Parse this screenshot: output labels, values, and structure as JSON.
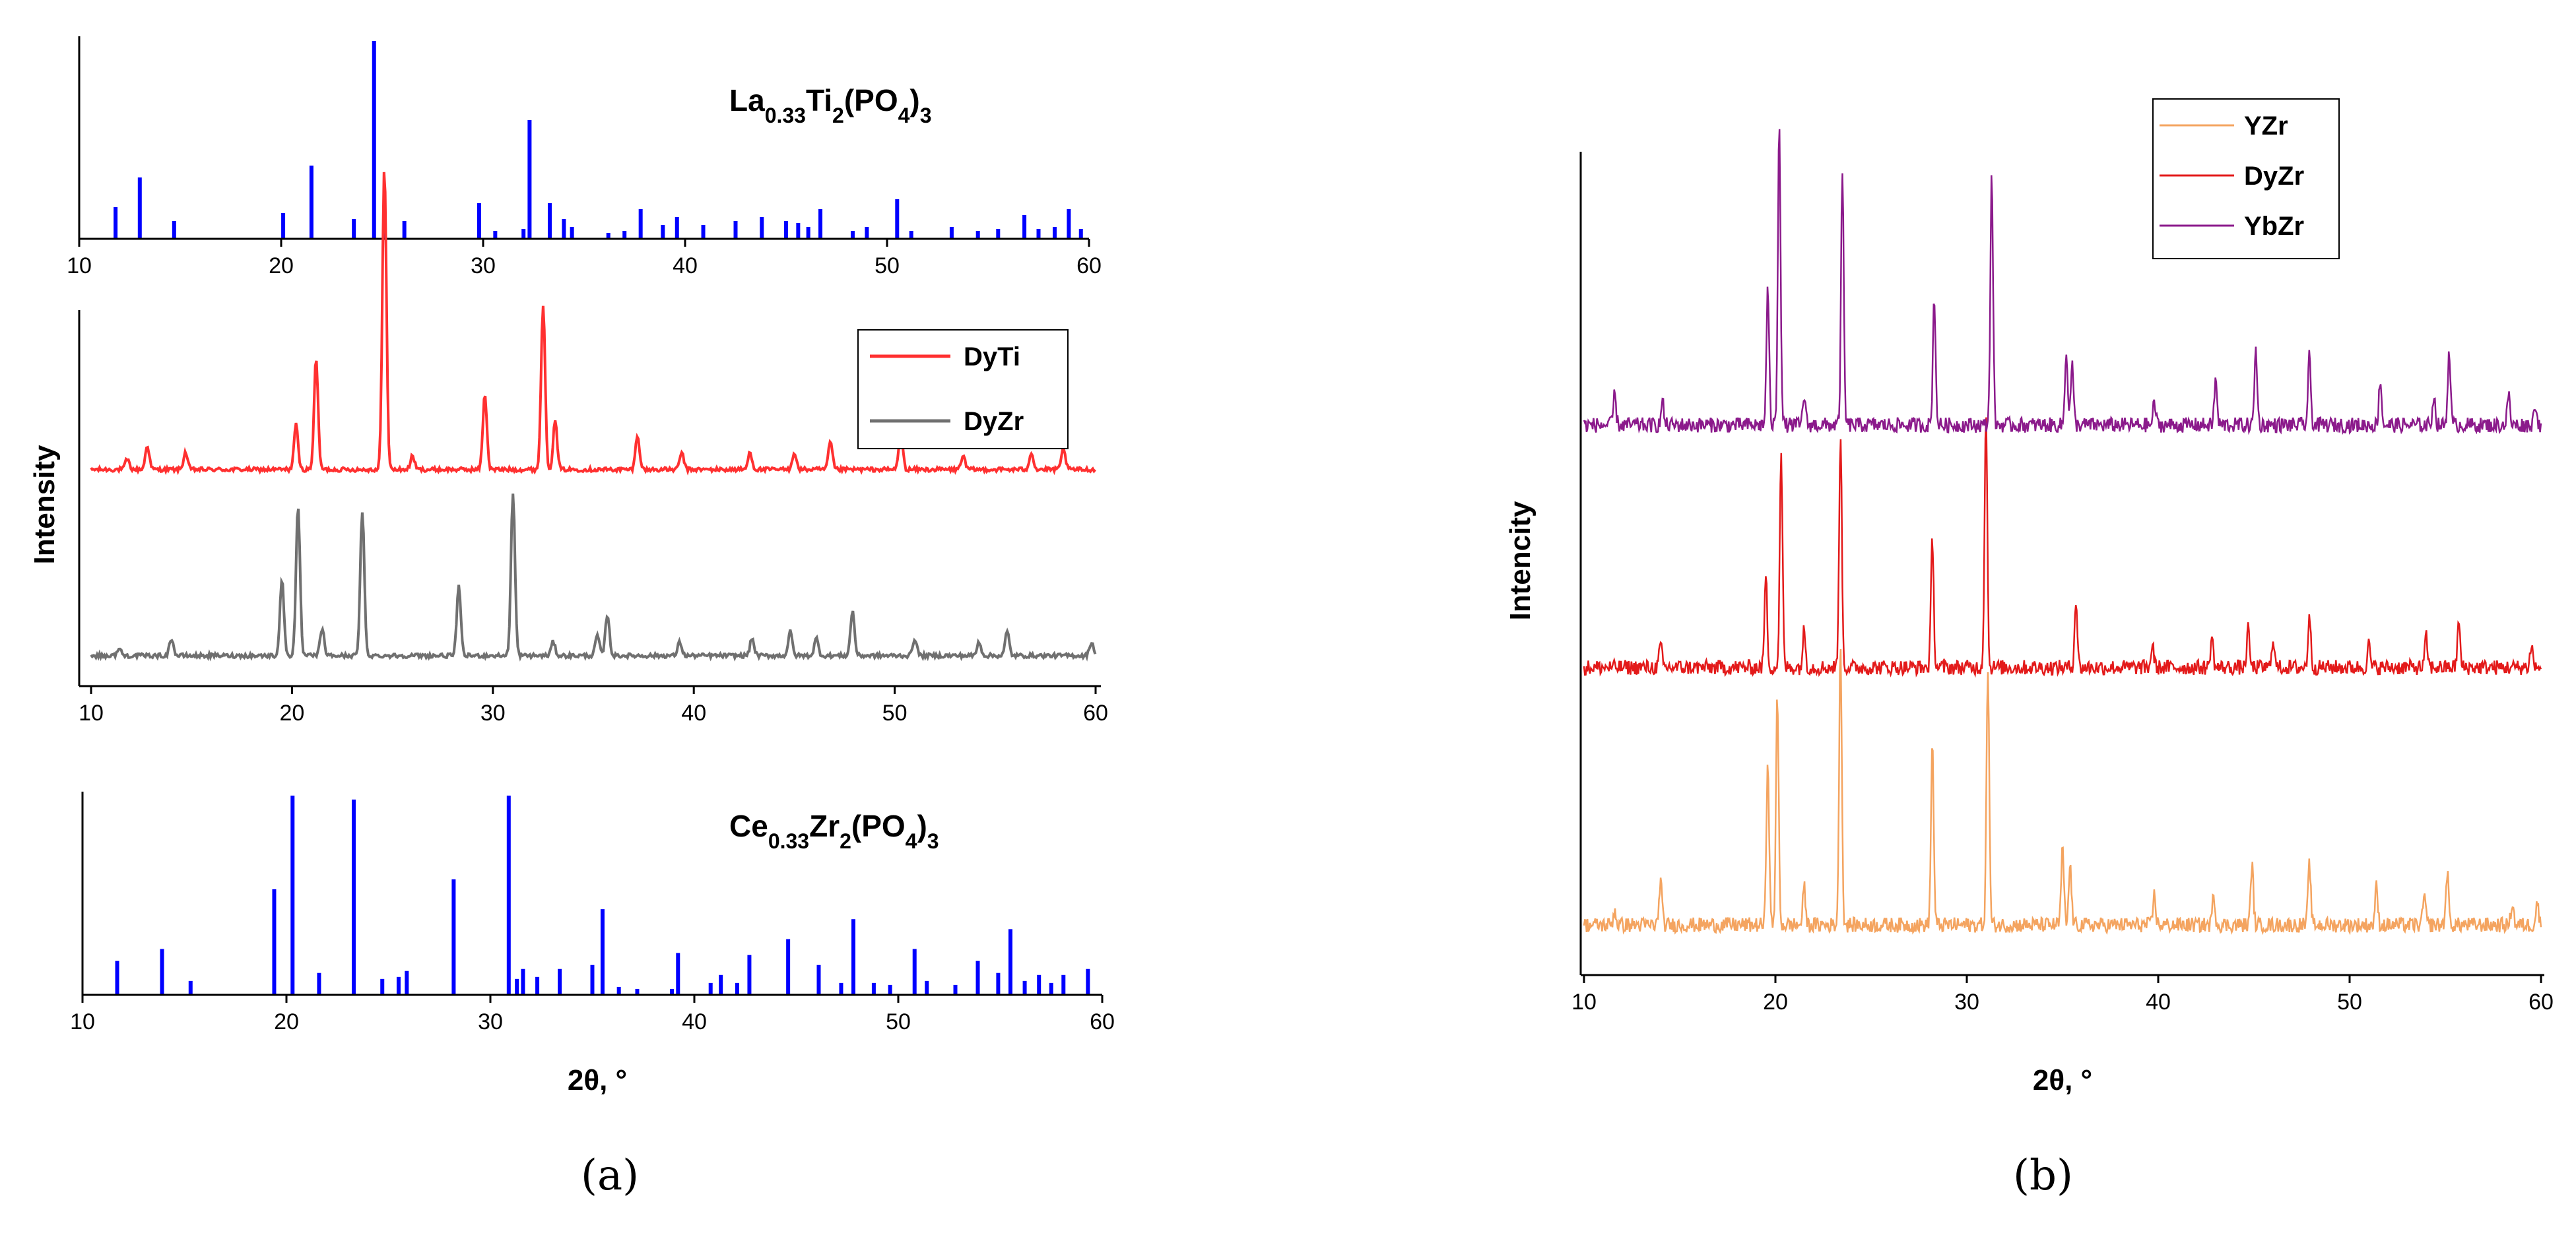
{
  "chart_data": [
    {
      "panel": "a",
      "caption": "(a)",
      "type": "line",
      "xlabel": "2θ, °",
      "ylabel": "Intensity",
      "xlim": [
        10,
        60
      ],
      "xticks": [
        10,
        20,
        30,
        40,
        50,
        60
      ],
      "subplots": [
        {
          "role": "reference-top",
          "type": "bar",
          "compound_parts": [
            {
              "text": "La",
              "sub": false
            },
            {
              "text": "0.33",
              "sub": true
            },
            {
              "text": "Ti",
              "sub": false
            },
            {
              "text": "2",
              "sub": true
            },
            {
              "text": "(PO",
              "sub": false
            },
            {
              "text": "4",
              "sub": true
            },
            {
              "text": ")",
              "sub": false
            },
            {
              "text": "3",
              "sub": true
            }
          ],
          "color": "#0000ff",
          "x": [
            11.8,
            13.0,
            14.7,
            20.1,
            21.5,
            23.6,
            24.6,
            25.1,
            26.1,
            29.8,
            30.6,
            32.0,
            32.3,
            33.3,
            34.0,
            34.4,
            36.2,
            37.0,
            37.8,
            38.9,
            39.6,
            40.9,
            42.5,
            43.8,
            45.0,
            45.6,
            46.1,
            46.7,
            48.3,
            49.0,
            50.5,
            51.2,
            53.2,
            54.5,
            55.5,
            56.8,
            57.5,
            58.3,
            59.0,
            59.6
          ],
          "values": [
            16,
            31,
            9,
            13,
            37,
            10,
            100,
            7,
            9,
            18,
            4,
            5,
            60,
            18,
            10,
            6,
            3,
            4,
            15,
            7,
            11,
            7,
            9,
            11,
            9,
            8,
            6,
            15,
            4,
            6,
            20,
            4,
            6,
            4,
            5,
            12,
            5,
            6,
            15,
            5
          ]
        },
        {
          "role": "measured",
          "type": "line",
          "legend": "top-right",
          "series": [
            {
              "name": "DyTi",
              "color": "#ff3030",
              "offset": 0.56,
              "peaks": [
                [
                  11.8,
                  0.03
                ],
                [
                  12.8,
                  0.07
                ],
                [
                  14.7,
                  0.05
                ],
                [
                  20.2,
                  0.13
                ],
                [
                  21.2,
                  0.32
                ],
                [
                  24.6,
                  0.88
                ],
                [
                  26.0,
                  0.04
                ],
                [
                  29.6,
                  0.22
                ],
                [
                  32.5,
                  0.48
                ],
                [
                  33.1,
                  0.14
                ],
                [
                  37.2,
                  0.1
                ],
                [
                  39.4,
                  0.05
                ],
                [
                  42.8,
                  0.05
                ],
                [
                  45.0,
                  0.05
                ],
                [
                  46.8,
                  0.08
                ],
                [
                  50.3,
                  0.11
                ],
                [
                  53.4,
                  0.04
                ],
                [
                  56.8,
                  0.05
                ],
                [
                  58.4,
                  0.06
                ]
              ]
            },
            {
              "name": "DyZr",
              "color": "#707070",
              "offset": 0.02,
              "peaks": [
                [
                  11.4,
                  0.02
                ],
                [
                  14.0,
                  0.05
                ],
                [
                  19.5,
                  0.22
                ],
                [
                  20.3,
                  0.43
                ],
                [
                  21.5,
                  0.08
                ],
                [
                  23.5,
                  0.42
                ],
                [
                  28.3,
                  0.2
                ],
                [
                  31.0,
                  0.47
                ],
                [
                  33.0,
                  0.04
                ],
                [
                  35.2,
                  0.06
                ],
                [
                  35.7,
                  0.12
                ],
                [
                  39.3,
                  0.04
                ],
                [
                  42.9,
                  0.05
                ],
                [
                  44.8,
                  0.07
                ],
                [
                  46.1,
                  0.05
                ],
                [
                  47.9,
                  0.13
                ],
                [
                  51.0,
                  0.05
                ],
                [
                  54.2,
                  0.04
                ],
                [
                  55.6,
                  0.07
                ],
                [
                  59.8,
                  0.04
                ]
              ]
            }
          ]
        },
        {
          "role": "reference-bottom",
          "type": "bar",
          "compound_parts": [
            {
              "text": "Ce",
              "sub": false
            },
            {
              "text": "0.33",
              "sub": true
            },
            {
              "text": "Zr",
              "sub": false
            },
            {
              "text": "2",
              "sub": true
            },
            {
              "text": "(PO",
              "sub": false
            },
            {
              "text": "4",
              "sub": true
            },
            {
              "text": ")",
              "sub": false
            },
            {
              "text": "3",
              "sub": true
            }
          ],
          "color": "#0000ff",
          "x": [
            11.7,
            13.9,
            15.3,
            19.4,
            20.3,
            21.6,
            23.3,
            24.7,
            25.5,
            25.9,
            28.2,
            30.9,
            31.3,
            31.6,
            32.3,
            33.4,
            35.0,
            35.5,
            36.3,
            37.2,
            38.9,
            39.2,
            40.8,
            41.3,
            42.1,
            42.7,
            44.6,
            46.1,
            47.2,
            47.8,
            48.8,
            49.6,
            50.8,
            51.4,
            52.8,
            53.9,
            54.9,
            55.5,
            56.2,
            56.9,
            57.5,
            58.1,
            59.3
          ],
          "values": [
            17,
            23,
            7,
            53,
            100,
            11,
            98,
            8,
            9,
            12,
            58,
            100,
            8,
            13,
            9,
            13,
            15,
            43,
            4,
            3,
            3,
            21,
            6,
            10,
            6,
            20,
            28,
            15,
            6,
            38,
            6,
            5,
            23,
            7,
            5,
            17,
            11,
            33,
            7,
            10,
            6,
            10,
            13
          ]
        }
      ]
    },
    {
      "panel": "b",
      "caption": "(b)",
      "type": "line",
      "xlabel": "2θ, °",
      "ylabel": "Intencity",
      "xlim": [
        10,
        60
      ],
      "xticks": [
        10,
        20,
        30,
        40,
        50,
        60
      ],
      "legend": "top-left",
      "series": [
        {
          "name": "YZr",
          "color": "#f4a460",
          "offset": 0.04,
          "peaks": [
            [
              11.6,
              0.02
            ],
            [
              14.0,
              0.06
            ],
            [
              19.6,
              0.22
            ],
            [
              20.1,
              0.3
            ],
            [
              21.5,
              0.05
            ],
            [
              23.4,
              0.37
            ],
            [
              28.2,
              0.24
            ],
            [
              31.1,
              0.34
            ],
            [
              35.0,
              0.1
            ],
            [
              35.4,
              0.08
            ],
            [
              39.8,
              0.04
            ],
            [
              42.9,
              0.04
            ],
            [
              44.9,
              0.08
            ],
            [
              47.9,
              0.08
            ],
            [
              51.4,
              0.05
            ],
            [
              53.9,
              0.04
            ],
            [
              55.1,
              0.07
            ],
            [
              58.5,
              0.03
            ],
            [
              59.8,
              0.03
            ]
          ]
        },
        {
          "name": "DyZr",
          "color": "#e31a1a",
          "offset": 0.38,
          "peaks": [
            [
              14.0,
              0.03
            ],
            [
              19.5,
              0.12
            ],
            [
              20.3,
              0.28
            ],
            [
              21.5,
              0.05
            ],
            [
              23.4,
              0.31
            ],
            [
              28.2,
              0.17
            ],
            [
              31.0,
              0.34
            ],
            [
              35.7,
              0.09
            ],
            [
              39.7,
              0.03
            ],
            [
              42.8,
              0.04
            ],
            [
              44.7,
              0.05
            ],
            [
              46.0,
              0.04
            ],
            [
              47.9,
              0.07
            ],
            [
              51.0,
              0.03
            ],
            [
              54.0,
              0.04
            ],
            [
              55.7,
              0.06
            ],
            [
              59.5,
              0.03
            ]
          ]
        },
        {
          "name": "YbZr",
          "color": "#8b1a8b",
          "offset": 0.7,
          "peaks": [
            [
              11.6,
              0.04
            ],
            [
              14.1,
              0.03
            ],
            [
              19.6,
              0.18
            ],
            [
              20.2,
              0.4
            ],
            [
              21.5,
              0.04
            ],
            [
              23.5,
              0.33
            ],
            [
              28.3,
              0.17
            ],
            [
              31.3,
              0.33
            ],
            [
              35.2,
              0.1
            ],
            [
              35.5,
              0.08
            ],
            [
              39.8,
              0.03
            ],
            [
              43.0,
              0.06
            ],
            [
              45.1,
              0.1
            ],
            [
              47.9,
              0.09
            ],
            [
              51.6,
              0.06
            ],
            [
              54.4,
              0.04
            ],
            [
              55.2,
              0.1
            ],
            [
              58.3,
              0.04
            ],
            [
              59.7,
              0.03
            ]
          ]
        }
      ]
    }
  ]
}
